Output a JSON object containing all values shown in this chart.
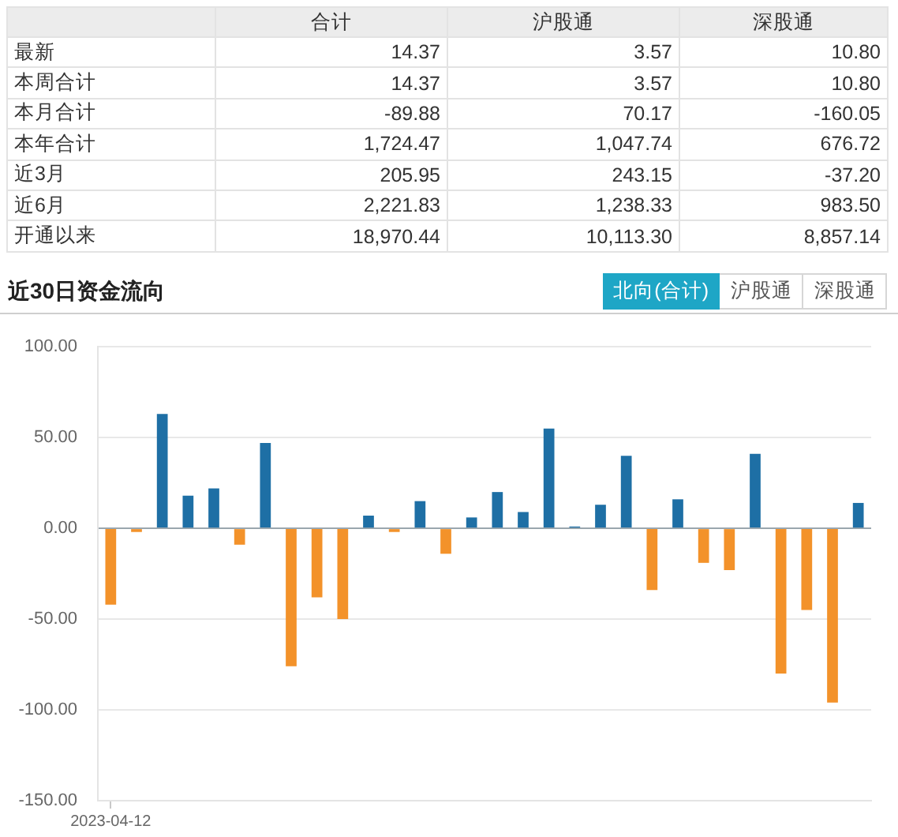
{
  "chart_data": [
    {
      "type": "other",
      "categories": [
        "合计",
        "沪股通",
        "深股通"
      ],
      "y_categories": [
        "最新",
        "本周合计",
        "本月合计",
        "本年合计",
        "近3月",
        "近6月",
        "开通以来"
      ],
      "cell_labels": [
        [
          "14.37",
          "3.57",
          "10.80"
        ],
        [
          "14.37",
          "3.57",
          "10.80"
        ],
        [
          "-89.88",
          "70.17",
          "-160.05"
        ],
        [
          "1,724.47",
          "1,047.74",
          "676.72"
        ],
        [
          "205.95",
          "243.15",
          "-37.20"
        ],
        [
          "2,221.83",
          "1,238.33",
          "983.50"
        ],
        [
          "18,970.44",
          "10,113.30",
          "8,857.14"
        ]
      ]
    },
    {
      "type": "bar",
      "title": "近30日资金流向",
      "annotations": [
        "北向(合计)",
        "沪股通",
        "深股通"
      ],
      "categories": [
        "2023-04-12",
        null,
        null,
        null,
        null,
        null,
        null,
        null,
        null,
        null,
        null,
        null,
        null,
        null,
        null,
        null,
        null,
        null,
        null,
        null,
        null,
        null,
        null,
        null,
        null,
        null,
        null,
        null,
        null,
        null
      ],
      "values": [
        -42,
        -2,
        63,
        18,
        22,
        -9,
        47,
        -76,
        -38,
        -50,
        7,
        -2,
        15,
        -14,
        6,
        20,
        9,
        55,
        1,
        13,
        40,
        -34,
        16,
        -19,
        -23,
        41,
        -80,
        -45,
        -96,
        14
      ],
      "colors": [
        "#f3922a",
        "#f3922a",
        "#1e6fa5",
        "#1e6fa5",
        "#1e6fa5",
        "#f3922a",
        "#1e6fa5",
        "#f3922a",
        "#f3922a",
        "#f3922a",
        "#1e6fa5",
        "#f3922a",
        "#1e6fa5",
        "#f3922a",
        "#1e6fa5",
        "#1e6fa5",
        "#1e6fa5",
        "#1e6fa5",
        "#1e6fa5",
        "#1e6fa5",
        "#1e6fa5",
        "#f3922a",
        "#1e6fa5",
        "#f3922a",
        "#f3922a",
        "#1e6fa5",
        "#f3922a",
        "#f3922a",
        "#f3922a",
        "#1e6fa5"
      ],
      "ylim": [
        -150,
        100
      ],
      "yticks": [
        {
          "value": -150,
          "label": "-150.00"
        },
        {
          "value": -100,
          "label": "-100.00"
        },
        {
          "value": -50,
          "label": "-50.00"
        },
        {
          "value": 0,
          "label": "0.00"
        },
        {
          "value": 50,
          "label": "50.00"
        },
        {
          "value": 100,
          "label": "100.00"
        }
      ],
      "grid": "y"
    }
  ]
}
